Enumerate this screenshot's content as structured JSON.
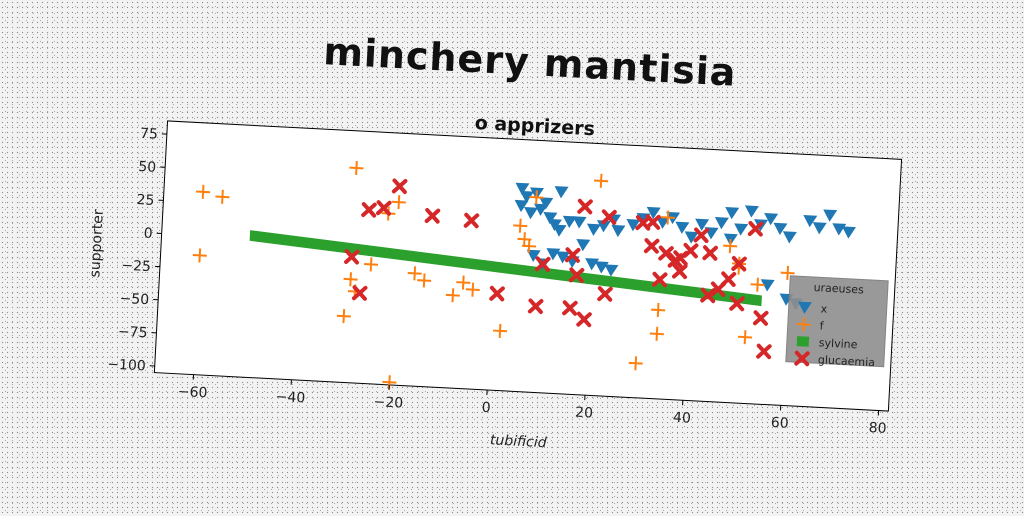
{
  "main_title": "minchery mantisia",
  "chart_data": {
    "type": "scatter",
    "title": "o apprizers",
    "xlabel": "tubificid",
    "ylabel": "supporter",
    "xlim": [
      -68,
      82
    ],
    "ylim": [
      -105,
      85
    ],
    "xticks": [
      -60,
      -40,
      -20,
      0,
      20,
      40,
      60,
      80
    ],
    "xtick_labels": [
      "−60",
      "−40",
      "−20",
      "0",
      "20",
      "40",
      "60",
      "80"
    ],
    "yticks": [
      -100,
      -75,
      -50,
      -25,
      0,
      25,
      50,
      75
    ],
    "ytick_labels": [
      "−100",
      "−75",
      "−50",
      "−25",
      "0",
      "25",
      "50",
      "75"
    ],
    "grid": false,
    "legend": {
      "title": "uraeuses",
      "placement": "right",
      "entries": [
        "x",
        "f",
        "sylvine",
        "glucaemia"
      ]
    },
    "series": [
      {
        "name": "x",
        "marker": "triangle-down",
        "color": "#1f77b4",
        "points": [
          [
            5,
            48
          ],
          [
            6,
            42
          ],
          [
            8,
            45
          ],
          [
            10,
            38
          ],
          [
            13,
            47
          ],
          [
            5,
            35
          ],
          [
            7,
            30
          ],
          [
            9,
            33
          ],
          [
            11,
            27
          ],
          [
            12,
            22
          ],
          [
            13,
            18
          ],
          [
            15,
            25
          ],
          [
            17,
            25
          ],
          [
            20,
            20
          ],
          [
            22,
            23
          ],
          [
            24,
            28
          ],
          [
            25,
            20
          ],
          [
            28,
            25
          ],
          [
            30,
            30
          ],
          [
            32,
            35
          ],
          [
            34,
            28
          ],
          [
            36,
            32
          ],
          [
            38,
            25
          ],
          [
            40,
            18
          ],
          [
            42,
            28
          ],
          [
            44,
            22
          ],
          [
            46,
            30
          ],
          [
            48,
            38
          ],
          [
            50,
            26
          ],
          [
            52,
            40
          ],
          [
            54,
            30
          ],
          [
            56,
            35
          ],
          [
            58,
            28
          ],
          [
            60,
            22
          ],
          [
            64,
            35
          ],
          [
            66,
            30
          ],
          [
            68,
            40
          ],
          [
            70,
            30
          ],
          [
            72,
            28
          ],
          [
            12,
            0
          ],
          [
            14,
            -2
          ],
          [
            16,
            -5
          ],
          [
            18,
            8
          ],
          [
            20,
            -6
          ],
          [
            22,
            -8
          ],
          [
            24,
            -10
          ],
          [
            8,
            -2
          ],
          [
            10,
            -8
          ],
          [
            48,
            18
          ],
          [
            56,
            -15
          ],
          [
            60,
            -25
          ],
          [
            62,
            -28
          ]
        ]
      },
      {
        "name": "f",
        "marker": "plus",
        "color": "#ff7f0e",
        "points": [
          [
            -60,
            33
          ],
          [
            -56,
            30
          ],
          [
            -60,
            -15
          ],
          [
            -29,
            57
          ],
          [
            -22,
            24
          ],
          [
            -20,
            33
          ],
          [
            -25,
            -15
          ],
          [
            -29,
            -27
          ],
          [
            -28,
            -36
          ],
          [
            -30,
            -55
          ],
          [
            -14,
            -25
          ],
          [
            -8,
            -35
          ],
          [
            -6,
            -25
          ],
          [
            -20,
            -103
          ],
          [
            2,
            -60
          ],
          [
            5,
            20
          ],
          [
            6,
            10
          ],
          [
            7,
            5
          ],
          [
            8,
            42
          ],
          [
            21,
            57
          ],
          [
            30,
            -79
          ],
          [
            34,
            -38
          ],
          [
            34,
            -56
          ],
          [
            35,
            32
          ],
          [
            48,
            13
          ],
          [
            50,
            0
          ],
          [
            50,
            -3
          ],
          [
            52,
            -55
          ],
          [
            54,
            -15
          ],
          [
            60,
            -5
          ],
          [
            -4,
            -30
          ],
          [
            -16,
            -20
          ]
        ]
      },
      {
        "name": "glucaemia",
        "marker": "x",
        "color": "#d62728",
        "points": [
          [
            -26,
            26
          ],
          [
            -23,
            28
          ],
          [
            -20,
            45
          ],
          [
            -13,
            24
          ],
          [
            -5,
            22
          ],
          [
            1,
            -32
          ],
          [
            9,
            -40
          ],
          [
            -29,
            -10
          ],
          [
            -27,
            -37
          ],
          [
            10,
            -8
          ],
          [
            16,
            0
          ],
          [
            17,
            -15
          ],
          [
            18,
            37
          ],
          [
            16,
            -40
          ],
          [
            19,
            -48
          ],
          [
            23,
            -28
          ],
          [
            23,
            30
          ],
          [
            30,
            27
          ],
          [
            32,
            10
          ],
          [
            34,
            -15
          ],
          [
            35,
            5
          ],
          [
            37,
            0
          ],
          [
            38,
            -8
          ],
          [
            40,
            8
          ],
          [
            42,
            20
          ],
          [
            44,
            -25
          ],
          [
            46,
            -20
          ],
          [
            48,
            -12
          ],
          [
            50,
            0
          ],
          [
            50,
            -30
          ],
          [
            53,
            27
          ],
          [
            55,
            -40
          ],
          [
            56,
            -65
          ],
          [
            32,
            28
          ],
          [
            38,
            2
          ],
          [
            44,
            7
          ]
        ]
      },
      {
        "name": "sylvine",
        "marker": "band",
        "color": "#2ca02c",
        "x": [
          -50,
          55
        ],
        "y_low": [
          -2,
          -31
        ],
        "y_high": [
          6,
          -23
        ]
      }
    ]
  }
}
